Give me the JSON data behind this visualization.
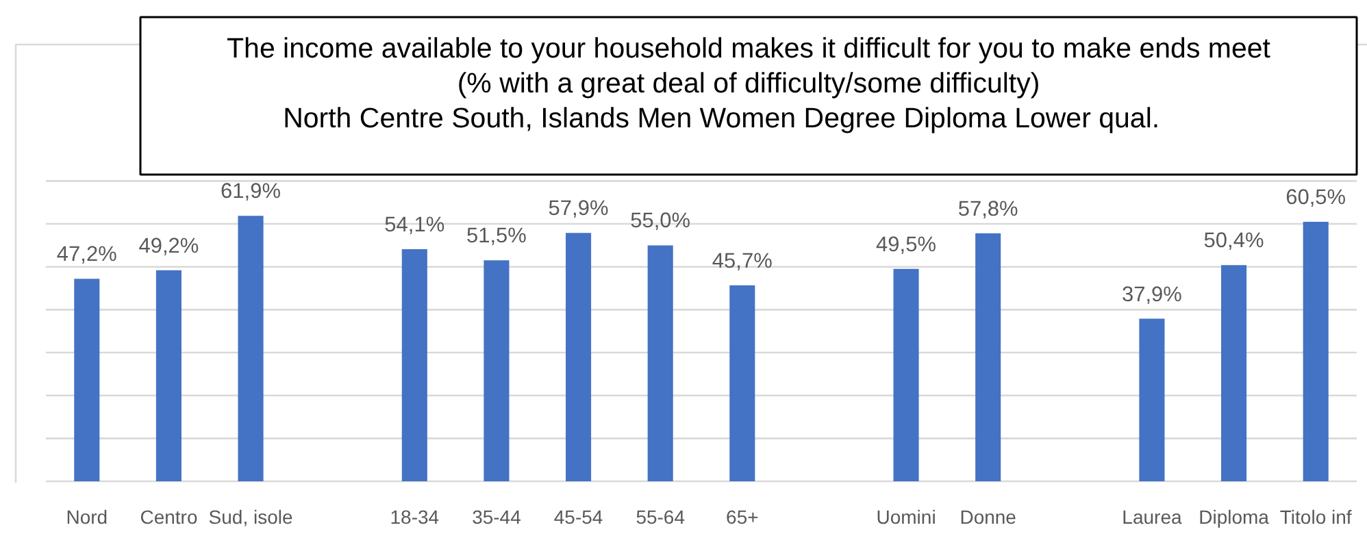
{
  "chart_data": {
    "type": "bar",
    "title": "The income available to your household makes it difficult for you to make ends meet",
    "subtitle": "(% with a great deal of difficulty/some difficulty)",
    "annotations": [
      "North Centre South, Islands      Men Women   Degree Diploma Lower qual."
    ],
    "categories": [
      "Nord",
      "Centro",
      "Sud, isole",
      null,
      "18-34",
      "35-44",
      "45-54",
      "55-64",
      "65+",
      null,
      "Uomini",
      "Donne",
      null,
      "Laurea",
      "Diploma",
      "Titolo inf"
    ],
    "values": [
      47.2,
      49.2,
      61.9,
      null,
      54.1,
      51.5,
      57.9,
      55.0,
      45.7,
      null,
      49.5,
      57.8,
      null,
      37.9,
      50.4,
      60.5
    ],
    "value_labels": [
      "47,2%",
      "49,2%",
      "61,9%",
      null,
      "54,1%",
      "51,5%",
      "57,9%",
      "55,0%",
      "45,7%",
      null,
      "49,5%",
      "57,8%",
      null,
      "37,9%",
      "50,4%",
      "60,5%"
    ],
    "color": "#4472c4",
    "ylim": [
      0,
      70
    ],
    "yticks": [
      {
        "value": 0,
        "label": null
      },
      {
        "value": 10,
        "label": null
      },
      {
        "value": 20,
        "label": null
      },
      {
        "value": 30,
        "label": null
      },
      {
        "value": 40,
        "label": null
      },
      {
        "value": 50,
        "label": null
      },
      {
        "value": 60,
        "label": null
      },
      {
        "value": 70,
        "label": null
      }
    ],
    "grid": "y",
    "tick_labels": "x"
  }
}
